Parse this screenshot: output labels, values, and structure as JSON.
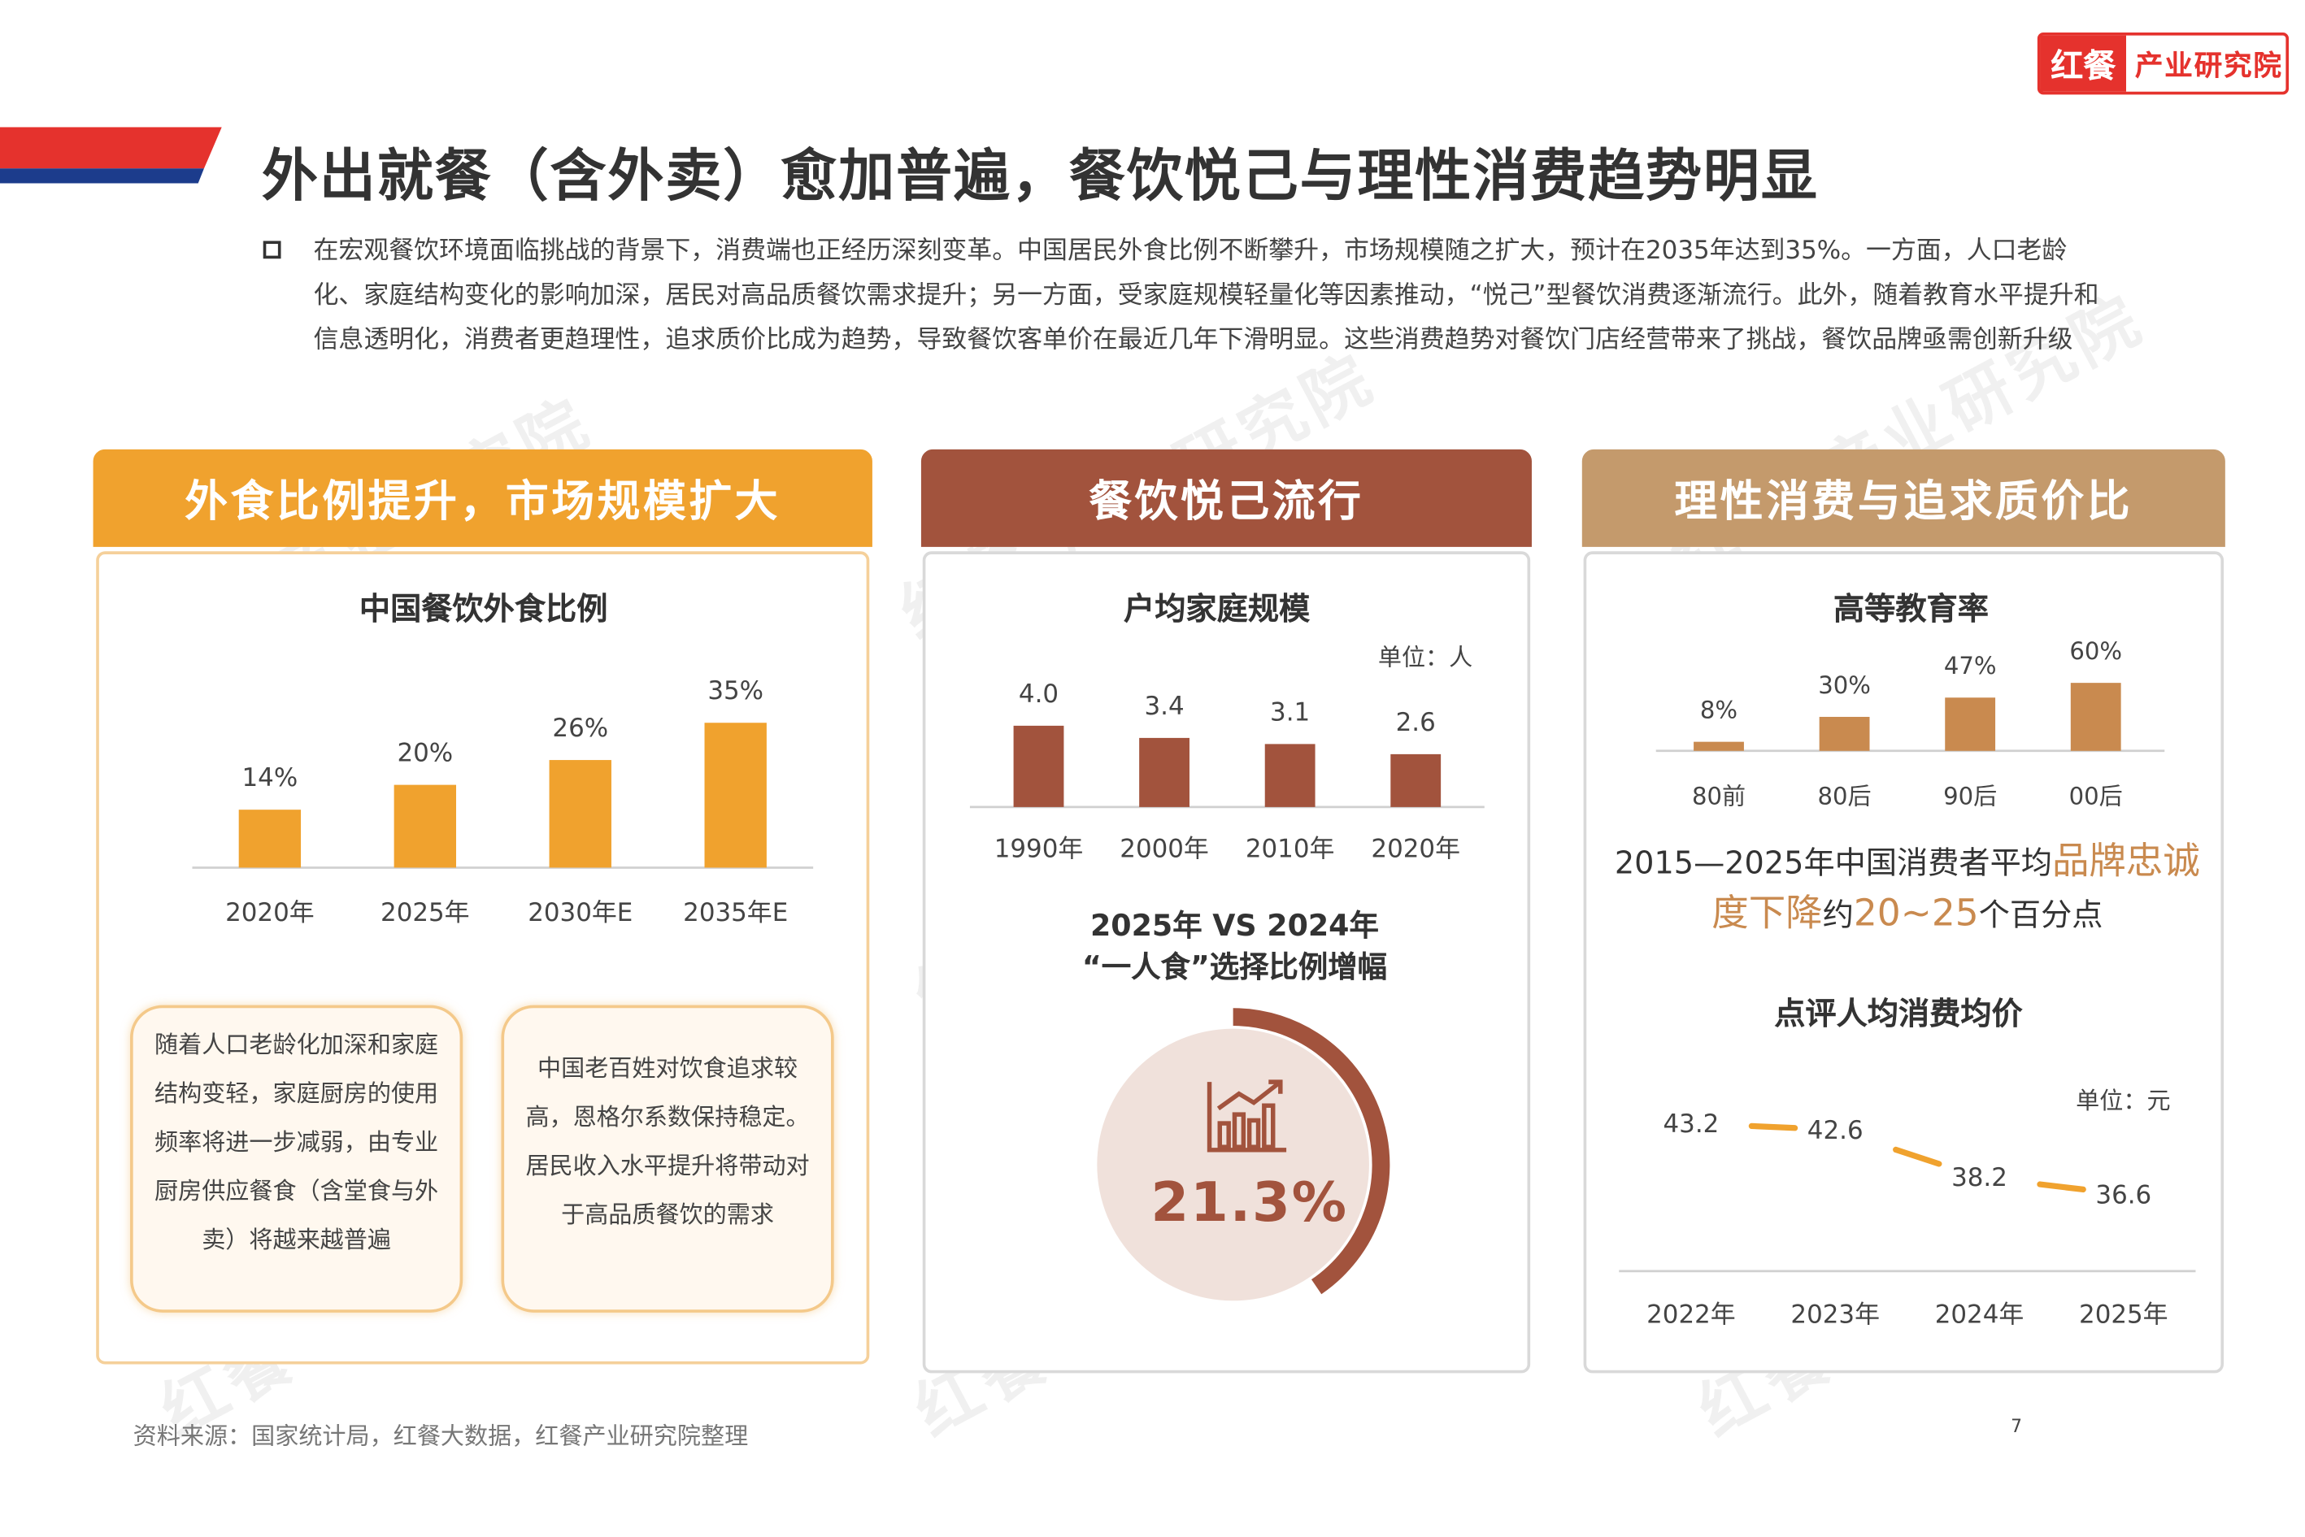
{
  "logo": {
    "mark": "红餐",
    "text": "产业研究院"
  },
  "watermark": "红餐 产业研究院",
  "page_title": "外出就餐（含外卖）愈加普遍，餐饮悦己与理性消费趋势明显",
  "intro": "在宏观餐饮环境面临挑战的背景下，消费端也正经历深刻变革。中国居民外食比例不断攀升，市场规模随之扩大，预计在2035年达到35%。一方面，人口老龄化、家庭结构变化的影响加深，居民对高品质餐饮需求提升；另一方面，受家庭规模轻量化等因素推动，“悦己”型餐饮消费逐渐流行。此外，随着教育水平提升和信息透明化，消费者更趋理性，追求质价比成为趋势，导致餐饮客单价在最近几年下滑明显。这些消费趋势对餐饮门店经营带来了挑战，餐饮品牌亟需创新升级",
  "colors": {
    "orange": "#f0a22e",
    "brown": "#a2533d",
    "tan": "#c49a6c",
    "red": "#e5322d",
    "navy": "#1c3c8c"
  },
  "panels": {
    "left": {
      "header": "外食比例提升，市场规模扩大",
      "chart_title": "中国餐饮外食比例",
      "note1": "随着人口老龄化加深和家庭结构变轻，家庭厨房的使用频率将进一步减弱，由专业厨房供应餐食（含堂食与外卖）将越来越普遍",
      "note2": "中国老百姓对饮食追求较高，恩格尔系数保持稳定。居民收入水平提升将带动对于高品质餐饮的需求"
    },
    "middle": {
      "header": "餐饮悦己流行",
      "chart_title": "户均家庭规模",
      "unit": "单位：人",
      "oneman_line1": "2025年 VS 2024年",
      "oneman_line2": "“一人食”选择比例增幅",
      "oneman_value": "21.3%",
      "oneman_icon": "bar-chart-growth-icon"
    },
    "right": {
      "header": "理性消费与追求质价比",
      "chart_title": "高等教育率",
      "loyalty_text": {
        "p1": "2015—2025年中国消费者平均",
        "h1": "品牌忠诚度下降",
        "p2": "约",
        "h2": "20~25",
        "p3": "个百分点"
      },
      "price_title": "点评人均消费均价",
      "price_unit": "单位：元"
    }
  },
  "chart_data": [
    {
      "type": "bar",
      "title": "中国餐饮外食比例",
      "categories": [
        "2020年",
        "2025年",
        "2030年E",
        "2035年E"
      ],
      "values": [
        14,
        20,
        26,
        35
      ],
      "labels": [
        "14%",
        "20%",
        "26%",
        "35%"
      ],
      "unit": "%",
      "color": "#f0a22e"
    },
    {
      "type": "bar",
      "title": "户均家庭规模",
      "categories": [
        "1990年",
        "2000年",
        "2010年",
        "2020年"
      ],
      "values": [
        4.0,
        3.4,
        3.1,
        2.6
      ],
      "labels": [
        "4.0",
        "3.4",
        "3.1",
        "2.6"
      ],
      "unit": "单位：人",
      "color": "#a2533d"
    },
    {
      "type": "bar",
      "title": "高等教育率",
      "categories": [
        "80前",
        "80后",
        "90后",
        "00后"
      ],
      "values": [
        8,
        30,
        47,
        60
      ],
      "labels": [
        "8%",
        "30%",
        "47%",
        "60%"
      ],
      "unit": "%",
      "color": "#c98a4f"
    },
    {
      "type": "line",
      "title": "点评人均消费均价",
      "categories": [
        "2022年",
        "2023年",
        "2024年",
        "2025年"
      ],
      "values": [
        43.2,
        42.6,
        38.2,
        36.6
      ],
      "labels": [
        "43.2",
        "42.6",
        "38.2",
        "36.6"
      ],
      "unit": "单位：元",
      "color": "#f0a22e"
    },
    {
      "type": "gauge",
      "title": "“一人食”选择比例增幅",
      "value": 21.3,
      "label": "21.3%",
      "color": "#a2533d"
    }
  ],
  "source": "资料来源：国家统计局，红餐大数据，红餐产业研究院整理",
  "page_number": "7"
}
